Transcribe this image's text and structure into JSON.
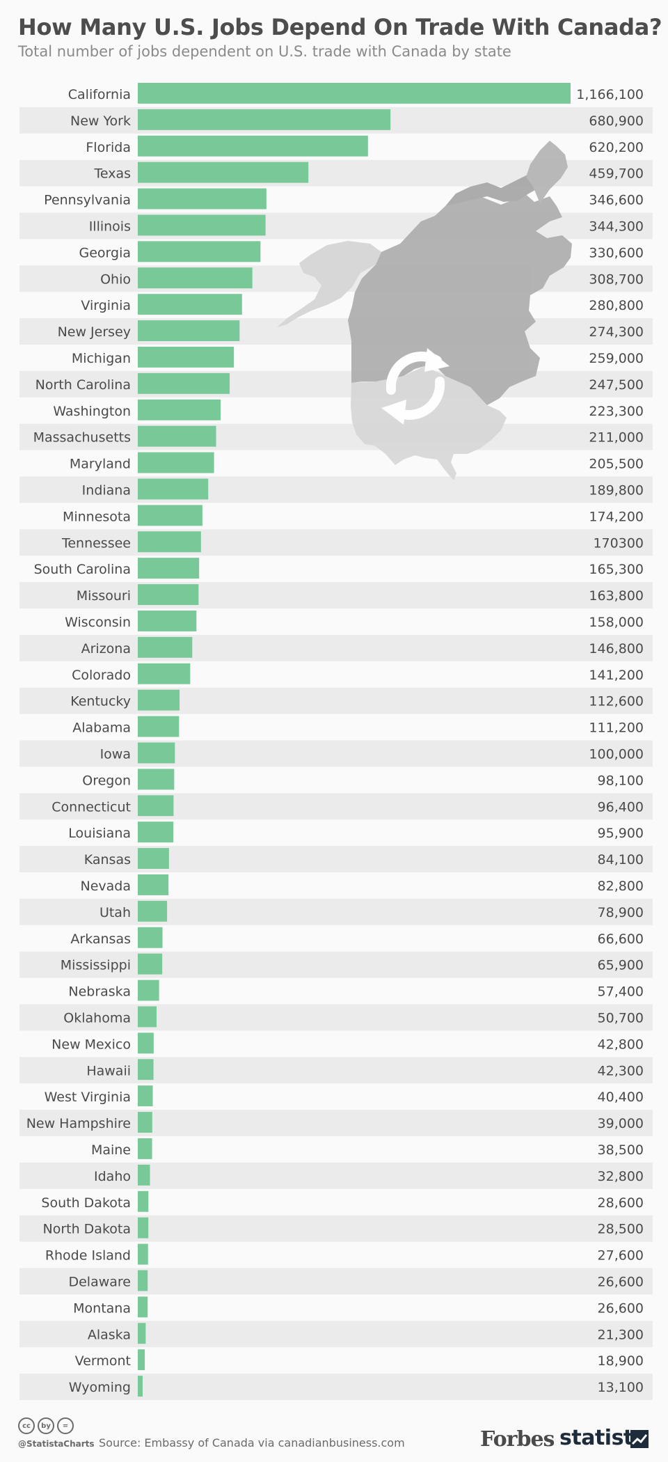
{
  "title": "How Many U.S. Jobs Depend On Trade With Canada?",
  "subtitle": "Total number of jobs dependent on U.S. trade with Canada by state",
  "chart_data": {
    "type": "bar",
    "orientation": "horizontal",
    "title": "How Many U.S. Jobs Depend On Trade With Canada?",
    "subtitle": "Total number of jobs dependent on U.S. trade with Canada by state",
    "bar_color": "#78c898",
    "stripe_color": "#ebebeb",
    "categories": [
      "California",
      "New York",
      "Florida",
      "Texas",
      "Pennsylvania",
      "Illinois",
      "Georgia",
      "Ohio",
      "Virginia",
      "New Jersey",
      "Michigan",
      "North Carolina",
      "Washington",
      "Massachusetts",
      "Maryland",
      "Indiana",
      "Minnesota",
      "Tennessee",
      "South Carolina",
      "Missouri",
      "Wisconsin",
      "Arizona",
      "Colorado",
      "Kentucky",
      "Alabama",
      "Iowa",
      "Oregon",
      "Connecticut",
      "Louisiana",
      "Kansas",
      "Nevada",
      "Utah",
      "Arkansas",
      "Mississippi",
      "Nebraska",
      "Oklahoma",
      "New Mexico",
      "Hawaii",
      "West Virginia",
      "New Hampshire",
      "Maine",
      "Idaho",
      "South Dakota",
      "North Dakota",
      "Rhode Island",
      "Delaware",
      "Montana",
      "Alaska",
      "Vermont",
      "Wyoming"
    ],
    "values": [
      1166100,
      680900,
      620200,
      459700,
      346600,
      344300,
      330600,
      308700,
      280800,
      274300,
      259000,
      247500,
      223300,
      211000,
      205500,
      189800,
      174200,
      170300,
      165300,
      163800,
      158000,
      146800,
      141200,
      112600,
      111200,
      100000,
      98100,
      96400,
      95900,
      84100,
      82800,
      78900,
      66600,
      65900,
      57400,
      50700,
      42800,
      42300,
      40400,
      39000,
      38500,
      32800,
      28600,
      28500,
      27600,
      26600,
      26600,
      21300,
      18900,
      13100
    ],
    "value_labels": [
      "1,166,100",
      "680,900",
      "620,200",
      "459,700",
      "346,600",
      "344,300",
      "330,600",
      "308,700",
      "280,800",
      "274,300",
      "259,000",
      "247,500",
      "223,300",
      "211,000",
      "205,500",
      "189,800",
      "174,200",
      "170300",
      "165,300",
      "163,800",
      "158,000",
      "146,800",
      "141,200",
      "112,600",
      "111,200",
      "100,000",
      "98,100",
      "96,400",
      "95,900",
      "84,100",
      "82,800",
      "78,900",
      "66,600",
      "65,900",
      "57,400",
      "50,700",
      "42,800",
      "42,300",
      "40,400",
      "39,000",
      "38,500",
      "32,800",
      "28,600",
      "28,500",
      "27,600",
      "26,600",
      "26,600",
      "21,300",
      "18,900",
      "13,100"
    ]
  },
  "footer": {
    "cc_icons": [
      "cc",
      "by",
      "="
    ],
    "handle": "@StatistaCharts",
    "source": "Source: Embassy of Canada via canadianbusiness.com",
    "logo_forbes": "Forbes",
    "logo_statista": "statista"
  }
}
